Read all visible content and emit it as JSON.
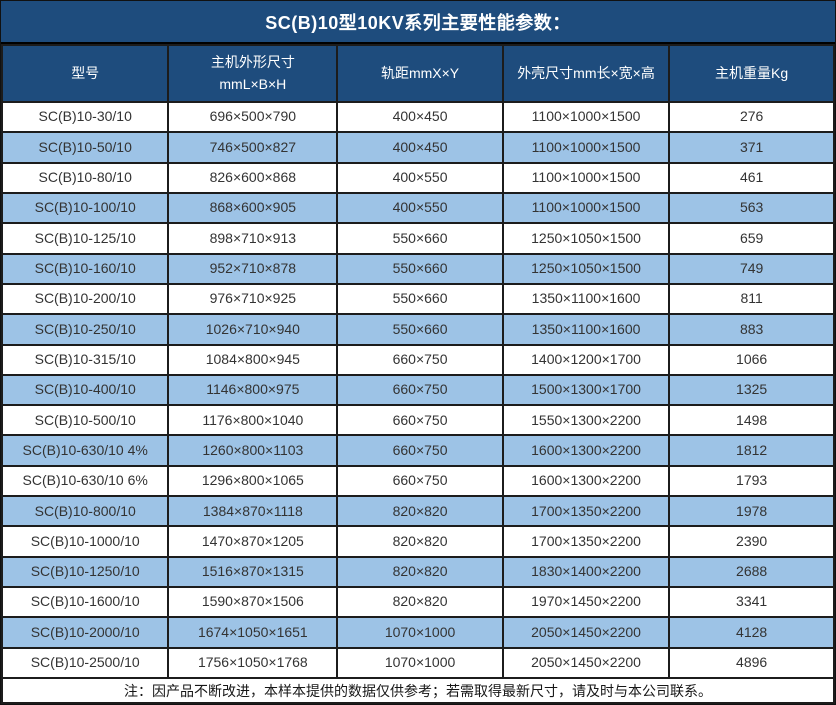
{
  "title": "SC(B)10型10KV系列主要性能参数：",
  "colors": {
    "header_bg": "#1e4c7d",
    "row_alt_bg": "#9dc3e6",
    "grid": "#1c1c1c"
  },
  "table": {
    "headers": [
      {
        "label": "型号"
      },
      {
        "label": "主机外形尺寸",
        "label2": "mmL×B×H"
      },
      {
        "label": "轨距mmX×Y"
      },
      {
        "label": "外壳尺寸mm长×宽×高"
      },
      {
        "label": "主机重量Kg"
      }
    ],
    "rows": [
      {
        "model": "SC(B)10-30/10",
        "host_size": "696×500×790",
        "rail_gauge": "400×450",
        "shell_size": "1100×1000×1500",
        "weight": "276"
      },
      {
        "model": "SC(B)10-50/10",
        "host_size": "746×500×827",
        "rail_gauge": "400×450",
        "shell_size": "1100×1000×1500",
        "weight": "371"
      },
      {
        "model": "SC(B)10-80/10",
        "host_size": "826×600×868",
        "rail_gauge": "400×550",
        "shell_size": "1100×1000×1500",
        "weight": "461"
      },
      {
        "model": "SC(B)10-100/10",
        "host_size": "868×600×905",
        "rail_gauge": "400×550",
        "shell_size": "1100×1000×1500",
        "weight": "563"
      },
      {
        "model": "SC(B)10-125/10",
        "host_size": "898×710×913",
        "rail_gauge": "550×660",
        "shell_size": "1250×1050×1500",
        "weight": "659"
      },
      {
        "model": "SC(B)10-160/10",
        "host_size": "952×710×878",
        "rail_gauge": "550×660",
        "shell_size": "1250×1050×1500",
        "weight": "749"
      },
      {
        "model": "SC(B)10-200/10",
        "host_size": "976×710×925",
        "rail_gauge": "550×660",
        "shell_size": "1350×1100×1600",
        "weight": "811"
      },
      {
        "model": "SC(B)10-250/10",
        "host_size": "1026×710×940",
        "rail_gauge": "550×660",
        "shell_size": "1350×1100×1600",
        "weight": "883"
      },
      {
        "model": "SC(B)10-315/10",
        "host_size": "1084×800×945",
        "rail_gauge": "660×750",
        "shell_size": "1400×1200×1700",
        "weight": "1066"
      },
      {
        "model": "SC(B)10-400/10",
        "host_size": "1146×800×975",
        "rail_gauge": "660×750",
        "shell_size": "1500×1300×1700",
        "weight": "1325"
      },
      {
        "model": "SC(B)10-500/10",
        "host_size": "1176×800×1040",
        "rail_gauge": "660×750",
        "shell_size": "1550×1300×2200",
        "weight": "1498"
      },
      {
        "model": "SC(B)10-630/10 4%",
        "host_size": "1260×800×1103",
        "rail_gauge": "660×750",
        "shell_size": "1600×1300×2200",
        "weight": "1812"
      },
      {
        "model": "SC(B)10-630/10 6%",
        "host_size": "1296×800×1065",
        "rail_gauge": "660×750",
        "shell_size": "1600×1300×2200",
        "weight": "1793"
      },
      {
        "model": "SC(B)10-800/10",
        "host_size": "1384×870×1118",
        "rail_gauge": "820×820",
        "shell_size": "1700×1350×2200",
        "weight": "1978"
      },
      {
        "model": "SC(B)10-1000/10",
        "host_size": "1470×870×1205",
        "rail_gauge": "820×820",
        "shell_size": "1700×1350×2200",
        "weight": "2390"
      },
      {
        "model": "SC(B)10-1250/10",
        "host_size": "1516×870×1315",
        "rail_gauge": "820×820",
        "shell_size": "1830×1400×2200",
        "weight": "2688"
      },
      {
        "model": "SC(B)10-1600/10",
        "host_size": "1590×870×1506",
        "rail_gauge": "820×820",
        "shell_size": "1970×1450×2200",
        "weight": "3341"
      },
      {
        "model": "SC(B)10-2000/10",
        "host_size": "1674×1050×1651",
        "rail_gauge": "1070×1000",
        "shell_size": "2050×1450×2200",
        "weight": "4128"
      },
      {
        "model": "SC(B)10-2500/10",
        "host_size": "1756×1050×1768",
        "rail_gauge": "1070×1000",
        "shell_size": "2050×1450×2200",
        "weight": "4896"
      }
    ]
  },
  "note": "注：因产品不断改进，本样本提供的数据仅供参考；若需取得最新尺寸，请及时与本公司联系。"
}
